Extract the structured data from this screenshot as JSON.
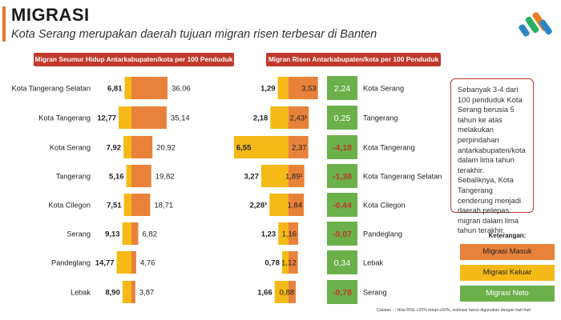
{
  "page": {
    "title": "MIGRASI",
    "subtitle": "Kota Serang merupakan daerah tujuan migran risen terbesar di Banten"
  },
  "colors": {
    "masuk": "#E8823A",
    "keluar": "#F5B918",
    "neto": "#6BB04A",
    "header": "#C0392B",
    "neg_text": "#C0392B",
    "pos_text": "#ffffff"
  },
  "icons": {
    "logo": "bps-logo"
  },
  "chart_data": [
    {
      "type": "bar",
      "title": "Migran Seumur Hidup Antarkabupaten/kota per 100 Penduduk",
      "categories": [
        "Kota Tangerang Selatan",
        "Kota Tangerang",
        "Kota Serang",
        "Tangerang",
        "Kota Cilegon",
        "Serang",
        "Pandeglang",
        "Lebak"
      ],
      "series": [
        {
          "name": "Migrasi Keluar",
          "values": [
            6.81,
            12.77,
            7.92,
            5.16,
            7.51,
            9.13,
            14.77,
            8.9
          ],
          "labels": [
            "6,81",
            "12,77",
            "7,92",
            "5,16",
            "7,51",
            "9,13",
            "14,77",
            "8,90"
          ]
        },
        {
          "name": "Migrasi Masuk",
          "values": [
            36.06,
            35.14,
            20.92,
            19.82,
            18.71,
            6.82,
            4.76,
            3.87
          ],
          "labels": [
            "36,06",
            "35,14",
            "20,92",
            "19,82",
            "18,71",
            "6,82",
            "4,76",
            "3,87"
          ]
        }
      ]
    },
    {
      "type": "bar",
      "title": "Migran Risen Antarkabupaten/kota per 100 Penduduk",
      "categories": [
        "Kota Serang",
        "Tangerang",
        "Kota Tangerang",
        "Kota Tangerang Selatan",
        "Kota Cilegon",
        "Pandeglang",
        "Lebak",
        "Serang"
      ],
      "series": [
        {
          "name": "Migrasi Keluar",
          "values": [
            1.29,
            2.18,
            6.55,
            3.27,
            2.28,
            1.23,
            0.78,
            1.66
          ],
          "labels": [
            "1,29",
            "2,18",
            "6,55",
            "3,27",
            "2,28¹",
            "1,23",
            "0,78",
            "1,66"
          ]
        },
        {
          "name": "Migrasi Masuk",
          "values": [
            3.53,
            2.43,
            2.37,
            1.89,
            1.84,
            1.16,
            1.12,
            0.88
          ],
          "labels": [
            "3,53",
            "2,43¹",
            "2,37",
            "1,89¹",
            "1,84",
            "1,16",
            "1,12",
            "0,88"
          ]
        },
        {
          "name": "Migrasi Neto",
          "values": [
            2.24,
            0.25,
            -4.18,
            -1.38,
            -0.44,
            -0.07,
            0.34,
            -0.78
          ],
          "labels": [
            "2,24",
            "0,25",
            "-4,18",
            "-1,38",
            "-0,44",
            "-0,07",
            "0,34",
            "-0,78"
          ]
        }
      ]
    }
  ],
  "note": {
    "para1": "Sebanyak 3-4 dari 100 penduduk Kota Serang berusia 5 tahun ke atas melakukan perpindahan antarkabupaten/kota dalam lima tahun terakhir.",
    "para2": "Sebaliknya, Kota Tangerang cenderung menjadi daerah pelepas migran dalam lima tahun terakhir."
  },
  "legend": {
    "title": "Keterangan:",
    "items": [
      "Migrasi Masuk",
      "Migrasi Keluar",
      "Migrasi Neto"
    ]
  },
  "footnote": "Catatan : ¹ Nilai RSE >25% tetapi ≤50%, estimasi harus digunakan dengan hati-hati"
}
